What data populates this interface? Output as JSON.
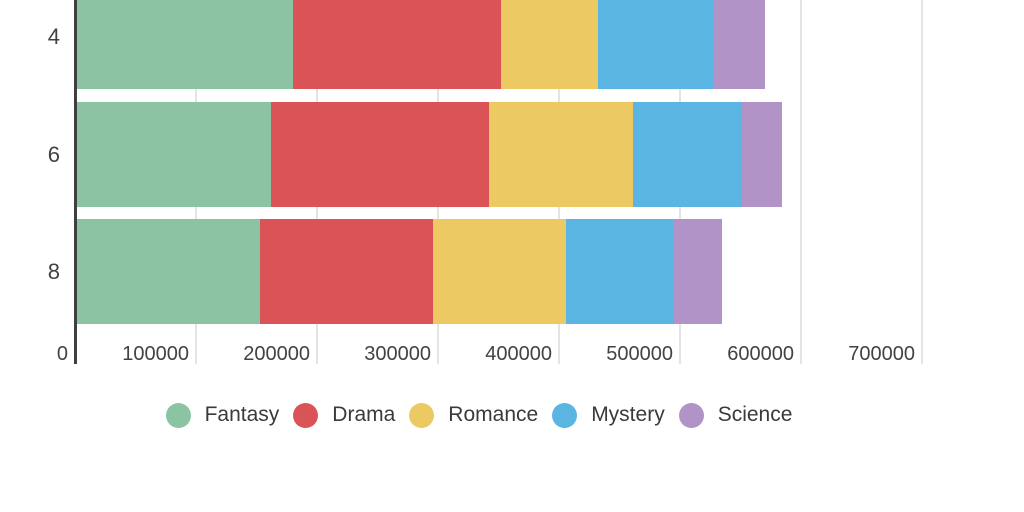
{
  "chart_data": {
    "type": "bar",
    "orientation": "horizontal",
    "stacked": true,
    "categories": [
      "4",
      "6",
      "8"
    ],
    "series": [
      {
        "name": "Fantasy",
        "color": "#8cc3a2",
        "values": [
          180000,
          162000,
          153000
        ]
      },
      {
        "name": "Drama",
        "color": "#da5457",
        "values": [
          172000,
          180000,
          143000
        ]
      },
      {
        "name": "Romance",
        "color": "#edc963",
        "values": [
          80000,
          119000,
          110000
        ]
      },
      {
        "name": "Mystery",
        "color": "#5bb5e3",
        "values": [
          95000,
          90000,
          89000
        ]
      },
      {
        "name": "Science",
        "color": "#b193c7",
        "values": [
          43000,
          33000,
          40000
        ]
      }
    ],
    "totals": [
      570000,
      584000,
      535000
    ],
    "x_ticks": [
      {
        "value": 0,
        "label": "0"
      },
      {
        "value": 100000,
        "label": "100000"
      },
      {
        "value": 200000,
        "label": "200000"
      },
      {
        "value": 300000,
        "label": "300000"
      },
      {
        "value": 400000,
        "label": "400000"
      },
      {
        "value": 500000,
        "label": "500000"
      },
      {
        "value": 600000,
        "label": "600000"
      },
      {
        "value": 700000,
        "label": "700000"
      }
    ],
    "xlim": [
      0,
      785000
    ],
    "grid": true,
    "legend_position": "bottom",
    "legend_entries": [
      "Fantasy",
      "Drama",
      "Romance",
      "Mystery",
      "Science"
    ],
    "colors": {
      "axis_line": "#3f3f3f",
      "gridline": "#e4e4e4",
      "axis_text": "#424242",
      "legend_text": "#3a3a3a",
      "background": "#ffffff"
    }
  }
}
